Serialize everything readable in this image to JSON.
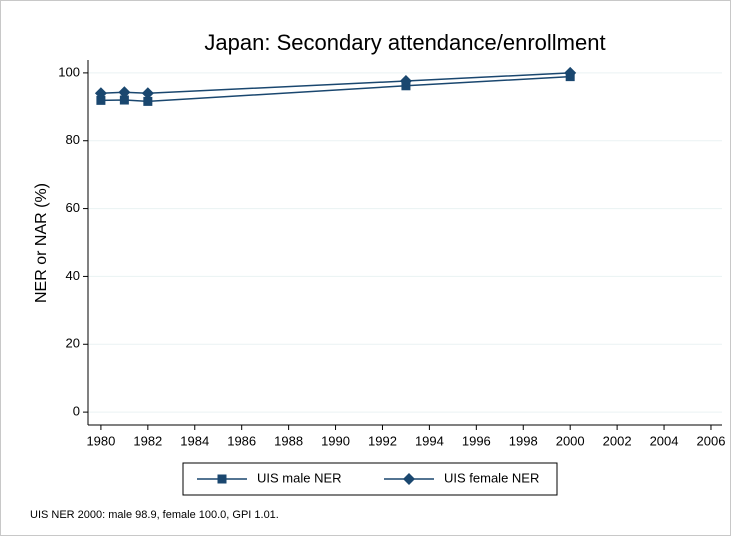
{
  "chart_data": {
    "type": "line",
    "title": "Japan: Secondary attendance/enrollment",
    "y_label": "NER or NAR (%)",
    "note": "UIS NER 2000: male 98.9, female 100.0, GPI 1.01.",
    "x": [
      1980,
      1981,
      1982,
      1993,
      2000
    ],
    "series": [
      {
        "name": "UIS male NER",
        "color": "#1a476f",
        "marker": "square",
        "values": [
          91.9,
          92.0,
          91.6,
          96.2,
          98.9
        ]
      },
      {
        "name": "UIS female NER",
        "color": "#1a476f",
        "marker": "diamond",
        "values": [
          94.0,
          94.3,
          94.0,
          97.6,
          100.0
        ]
      }
    ],
    "xlim": [
      1979.45,
      2006.47
    ],
    "xticks": [
      1980,
      1982,
      1984,
      1986,
      1988,
      1990,
      1992,
      1994,
      1996,
      1998,
      2000,
      2002,
      2004,
      2006
    ],
    "ylim": [
      -3.8,
      103.8
    ],
    "yticks": [
      0,
      20,
      40,
      60,
      80,
      100
    ],
    "grid": true,
    "legend": "bottom"
  }
}
